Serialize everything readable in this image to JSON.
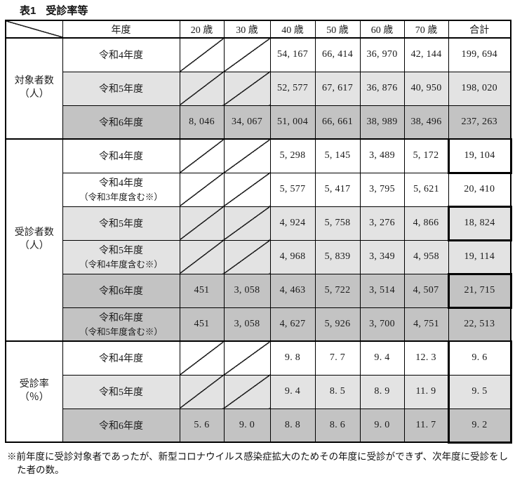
{
  "header": {
    "table_no": "表1",
    "title": "受診率等"
  },
  "table": {
    "columns": [
      "年度",
      "20 歳",
      "30 歳",
      "40 歳",
      "50 歳",
      "60 歳",
      "70 歳",
      "合計"
    ],
    "groups": [
      {
        "label": [
          "対象者数",
          "（人）"
        ],
        "rows": [
          {
            "year": [
              "令和4年度"
            ],
            "shade": "none",
            "cells": [
              null,
              null,
              "54, 167",
              "66, 414",
              "36, 970",
              "42, 144",
              "199, 694"
            ]
          },
          {
            "year": [
              "令和5年度"
            ],
            "shade": "light",
            "cells": [
              null,
              null,
              "52, 577",
              "67, 617",
              "36, 876",
              "40, 950",
              "198, 020"
            ]
          },
          {
            "year": [
              "令和6年度"
            ],
            "shade": "dark",
            "cells": [
              "8, 046",
              "34, 067",
              "51, 004",
              "66, 661",
              "38, 989",
              "38, 496",
              "237, 263"
            ]
          }
        ]
      },
      {
        "label": [
          "受診者数",
          "（人）"
        ],
        "rows": [
          {
            "year": [
              "令和4年度"
            ],
            "shade": "none",
            "box": "full",
            "cells": [
              null,
              null,
              "5, 298",
              "5, 145",
              "3, 489",
              "5, 172",
              "19, 104"
            ]
          },
          {
            "year": [
              "令和4年度",
              "（令和3年度含む※）"
            ],
            "shade": "none",
            "cells": [
              null,
              null,
              "5, 577",
              "5, 417",
              "3, 795",
              "5, 621",
              "20, 410"
            ]
          },
          {
            "year": [
              "令和5年度"
            ],
            "shade": "light",
            "box": "full",
            "cells": [
              null,
              null,
              "4, 924",
              "5, 758",
              "3, 276",
              "4, 866",
              "18, 824"
            ]
          },
          {
            "year": [
              "令和5年度",
              "（令和4年度含む※）"
            ],
            "shade": "light",
            "cells": [
              null,
              null,
              "4, 968",
              "5, 839",
              "3, 349",
              "4, 958",
              "19, 114"
            ]
          },
          {
            "year": [
              "令和6年度"
            ],
            "shade": "dark",
            "box": "full",
            "cells": [
              "451",
              "3, 058",
              "4, 463",
              "5, 722",
              "3, 514",
              "4, 507",
              "21, 715"
            ]
          },
          {
            "year": [
              "令和6年度",
              "（令和5年度含む※）"
            ],
            "shade": "dark",
            "cells": [
              "451",
              "3, 058",
              "4, 627",
              "5, 926",
              "3, 700",
              "4, 751",
              "22, 513"
            ]
          }
        ]
      },
      {
        "label": [
          "受診率",
          "（％）"
        ],
        "rows": [
          {
            "year": [
              "令和4年度"
            ],
            "shade": "none",
            "box": "top",
            "cells": [
              null,
              null,
              "9. 8",
              "7. 7",
              "9. 4",
              "12. 3",
              "9. 6"
            ]
          },
          {
            "year": [
              "令和5年度"
            ],
            "shade": "light",
            "box": "mid",
            "cells": [
              null,
              null,
              "9. 4",
              "8. 5",
              "8. 9",
              "11. 9",
              "9. 5"
            ]
          },
          {
            "year": [
              "令和6年度"
            ],
            "shade": "dark",
            "box": "bottom",
            "cells": [
              "5. 6",
              "9. 0",
              "8. 8",
              "8. 6",
              "9. 0",
              "11. 7",
              "9. 2"
            ]
          }
        ]
      }
    ]
  },
  "footnote": {
    "line1": "※前年度に受診対象者であったが、新型コロナウイルス感染症拡大のためその年度に受診ができず、次年度に受診をし",
    "line2": "た者の数。"
  },
  "colors": {
    "shade_light": "#e3e3e3",
    "shade_dark": "#c3c3c3",
    "border": "#000000",
    "text": "#1a1a1a",
    "highlight_box": "#000000"
  }
}
